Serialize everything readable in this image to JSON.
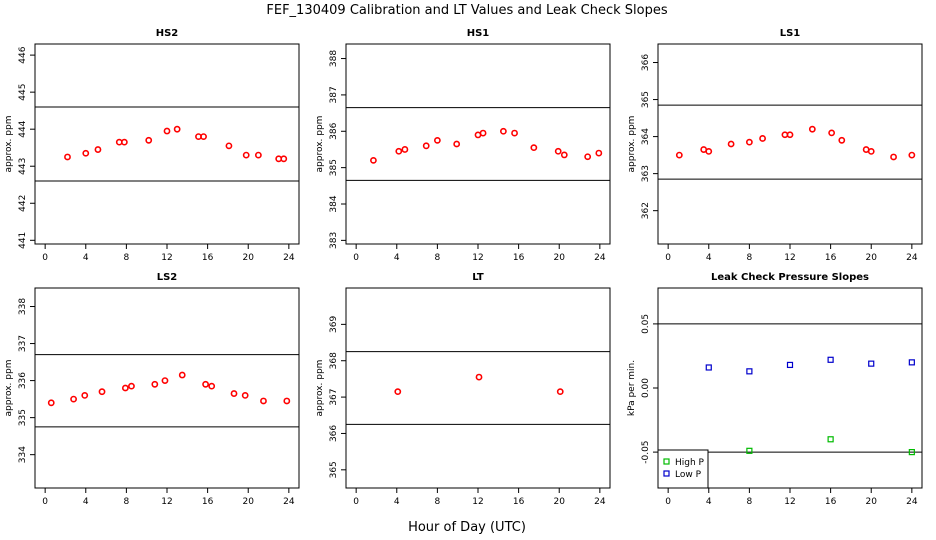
{
  "title": "FEF_130409  Calibration and LT Values and Leak Check Slopes",
  "xlabel": "Hour of Day (UTC)",
  "colors": {
    "cal": "#ff0000",
    "high_p": "#00bb00",
    "low_p": "#0000cc",
    "axis": "#000000"
  },
  "chart_data": [
    {
      "type": "scatter",
      "title": "HS2",
      "ylabel": "approx. ppm",
      "xlim": [
        -1,
        25
      ],
      "ylim": [
        440.9,
        446.3
      ],
      "xticks": [
        0,
        4,
        8,
        12,
        16,
        20,
        24
      ],
      "yticks": [
        441,
        442,
        443,
        444,
        445,
        446
      ],
      "hlines": [
        444.6,
        442.6
      ],
      "series": [
        {
          "color": "#ff0000",
          "x": [
            2.2,
            4,
            5.2,
            7.3,
            7.8,
            10.2,
            12,
            13,
            15.1,
            15.6,
            18.1,
            19.8,
            21,
            23,
            23.5
          ],
          "y": [
            443.25,
            443.35,
            443.45,
            443.65,
            443.65,
            443.7,
            443.95,
            444.0,
            443.8,
            443.8,
            443.55,
            443.3,
            443.3,
            443.2,
            443.2
          ]
        }
      ]
    },
    {
      "type": "scatter",
      "title": "HS1",
      "ylabel": "approx. ppm",
      "xlim": [
        -1,
        25
      ],
      "ylim": [
        382.9,
        388.4
      ],
      "xticks": [
        0,
        4,
        8,
        12,
        16,
        20,
        24
      ],
      "yticks": [
        383,
        384,
        385,
        386,
        387,
        388
      ],
      "hlines": [
        386.65,
        384.65
      ],
      "series": [
        {
          "color": "#ff0000",
          "x": [
            1.7,
            4.2,
            4.8,
            6.9,
            8,
            9.9,
            12,
            12.5,
            14.5,
            15.6,
            17.5,
            19.9,
            20.5,
            22.8,
            23.9
          ],
          "y": [
            385.2,
            385.45,
            385.5,
            385.6,
            385.75,
            385.65,
            385.9,
            385.95,
            386.0,
            385.95,
            385.55,
            385.45,
            385.35,
            385.3,
            385.4
          ]
        }
      ]
    },
    {
      "type": "scatter",
      "title": "LS1",
      "ylabel": "approx. ppm",
      "xlim": [
        -1,
        25
      ],
      "ylim": [
        361.1,
        366.5
      ],
      "xticks": [
        0,
        4,
        8,
        12,
        16,
        20,
        24
      ],
      "yticks": [
        362,
        363,
        364,
        365,
        366
      ],
      "hlines": [
        364.85,
        362.85
      ],
      "series": [
        {
          "color": "#ff0000",
          "x": [
            1.1,
            3.5,
            4,
            6.2,
            8,
            9.3,
            11.5,
            12,
            14.2,
            16.1,
            17.1,
            19.5,
            20,
            22.2,
            24
          ],
          "y": [
            363.5,
            363.65,
            363.6,
            363.8,
            363.85,
            363.95,
            364.05,
            364.05,
            364.2,
            364.1,
            363.9,
            363.65,
            363.6,
            363.45,
            363.5
          ]
        }
      ]
    },
    {
      "type": "scatter",
      "title": "LS2",
      "ylabel": "approx. ppm",
      "xlim": [
        -1,
        25
      ],
      "ylim": [
        333.1,
        338.5
      ],
      "xticks": [
        0,
        4,
        8,
        12,
        16,
        20,
        24
      ],
      "yticks": [
        334,
        335,
        336,
        337,
        338
      ],
      "hlines": [
        336.7,
        334.75
      ],
      "series": [
        {
          "color": "#ff0000",
          "x": [
            0.6,
            2.8,
            3.9,
            5.6,
            7.9,
            8.5,
            10.8,
            11.8,
            13.5,
            15.8,
            16.4,
            18.6,
            19.7,
            21.5,
            23.8
          ],
          "y": [
            335.4,
            335.5,
            335.6,
            335.7,
            335.8,
            335.85,
            335.9,
            336.0,
            336.15,
            335.9,
            335.85,
            335.65,
            335.6,
            335.45,
            335.45
          ]
        }
      ]
    },
    {
      "type": "scatter",
      "title": "LT",
      "ylabel": "approx. ppm",
      "xlim": [
        -1,
        25
      ],
      "ylim": [
        364.5,
        370.0
      ],
      "xticks": [
        0,
        4,
        8,
        12,
        16,
        20,
        24
      ],
      "yticks": [
        365,
        366,
        367,
        368,
        369
      ],
      "hlines": [
        368.25,
        366.25
      ],
      "series": [
        {
          "color": "#ff0000",
          "x": [
            4.1,
            12.1,
            20.1
          ],
          "y": [
            367.15,
            367.55,
            367.15
          ]
        }
      ]
    },
    {
      "type": "scatter",
      "title": "Leak Check Pressure Slopes",
      "ylabel": "kPa per min.",
      "xlim": [
        -1,
        25
      ],
      "ylim": [
        -0.078,
        0.078
      ],
      "xticks": [
        0,
        4,
        8,
        12,
        16,
        20,
        24
      ],
      "yticks": [
        -0.05,
        0.0,
        0.05
      ],
      "ytick_labels": [
        "-0.05",
        "0.00",
        "0.05"
      ],
      "hlines": [
        0.05,
        -0.05
      ],
      "legend_position": "bottom-left",
      "series": [
        {
          "name": "High P",
          "color": "#00bb00",
          "marker": "square",
          "x": [
            8,
            16,
            24
          ],
          "y": [
            -0.049,
            -0.04,
            -0.05
          ]
        },
        {
          "name": "Low P",
          "color": "#0000cc",
          "marker": "square",
          "x": [
            4,
            8,
            12,
            16,
            20,
            24
          ],
          "y": [
            0.016,
            0.013,
            0.018,
            0.022,
            0.019,
            0.02
          ]
        }
      ]
    }
  ]
}
